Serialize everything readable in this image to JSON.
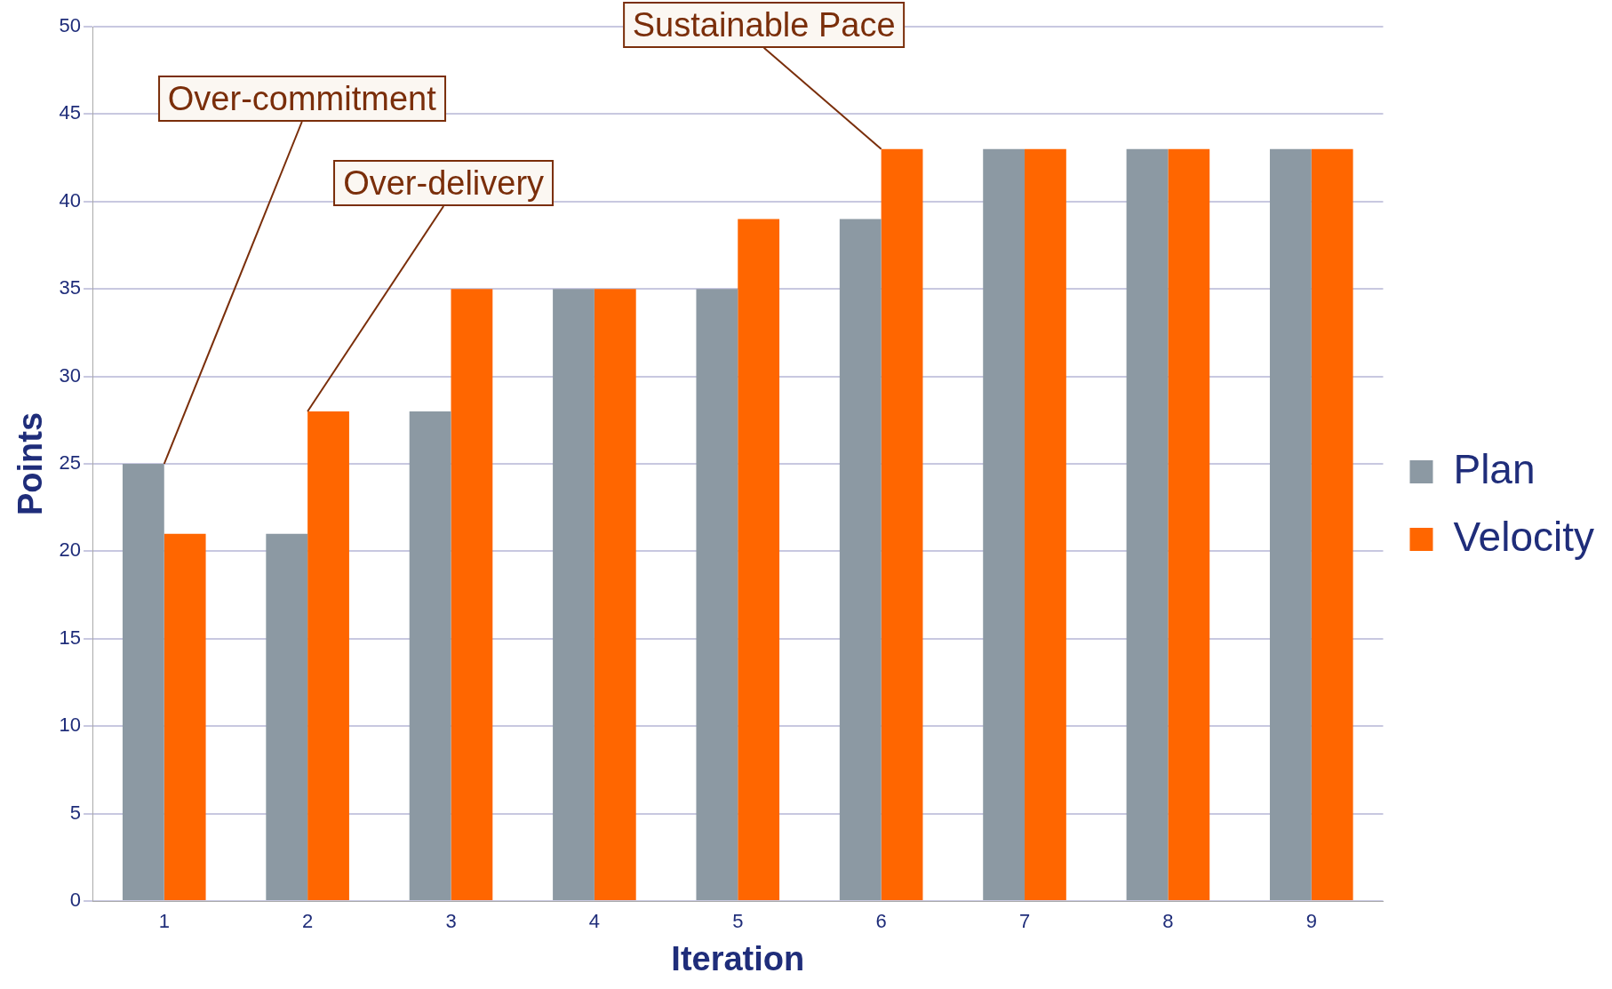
{
  "chart_data": {
    "type": "bar",
    "xlabel": "Iteration",
    "ylabel": "Points",
    "categories": [
      "1",
      "2",
      "3",
      "4",
      "5",
      "6",
      "7",
      "8",
      "9"
    ],
    "series": [
      {
        "name": "Plan",
        "color": "#8c99a3",
        "values": [
          25,
          21,
          28,
          35,
          35,
          39,
          43,
          43,
          43
        ]
      },
      {
        "name": "Velocity",
        "color": "#ff6600",
        "values": [
          21,
          28,
          35,
          35,
          39,
          43,
          43,
          43,
          43
        ]
      }
    ],
    "ylim": [
      0,
      50
    ],
    "yticks": [
      0,
      5,
      10,
      15,
      20,
      25,
      30,
      35,
      40,
      45,
      50
    ],
    "grid": "y",
    "legend": "right",
    "annotations": [
      {
        "text": "Over-commitment",
        "x": "1",
        "y": 25
      },
      {
        "text": "Over-delivery",
        "x": "2",
        "y": 28
      },
      {
        "text": "Sustainable Pace",
        "x": "6",
        "y": 43
      }
    ]
  }
}
